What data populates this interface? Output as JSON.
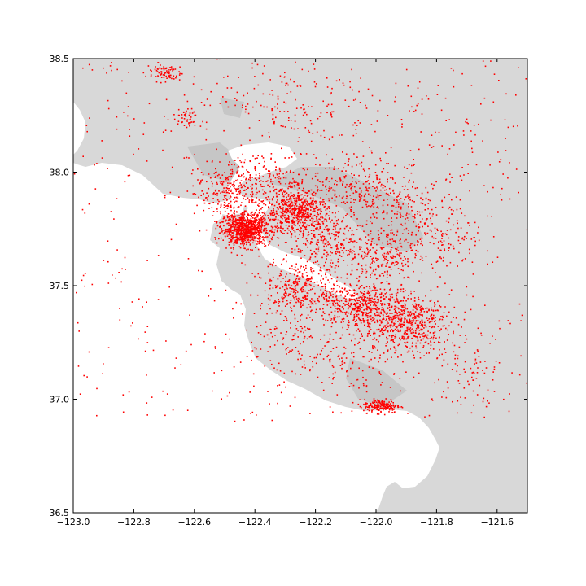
{
  "colors": {
    "land": "#d8d8d8",
    "inland_shade": "#c6c6c6",
    "water": "#ffffff",
    "points": "#ff0000",
    "axes": "#000000"
  },
  "chart_data": {
    "type": "scatter",
    "title": "",
    "xlabel": "",
    "ylabel": "",
    "xlim": [
      -123.0,
      -121.5
    ],
    "ylim": [
      36.5,
      38.5
    ],
    "grid": false,
    "legend": "none",
    "x_ticks": [
      -123.0,
      -122.8,
      -122.6,
      -122.4,
      -122.2,
      -122.0,
      -121.8,
      -121.6
    ],
    "x_tick_labels": [
      "−123.0",
      "−122.8",
      "−122.6",
      "−122.4",
      "−122.2",
      "−122.0",
      "−121.8",
      "−121.6"
    ],
    "y_ticks": [
      36.5,
      37.0,
      37.5,
      38.0,
      38.5
    ],
    "y_tick_labels": [
      "36.5",
      "37.0",
      "37.5",
      "38.0",
      "38.5"
    ],
    "clusters": [
      {
        "lon": -122.43,
        "lat": 37.75,
        "spread": [
          0.04,
          0.035
        ],
        "weight": 900
      },
      {
        "lon": -122.26,
        "lat": 37.83,
        "spread": [
          0.05,
          0.05
        ],
        "weight": 600
      },
      {
        "lon": -122.16,
        "lat": 37.72,
        "spread": [
          0.06,
          0.06
        ],
        "weight": 250
      },
      {
        "lon": -122.05,
        "lat": 37.42,
        "spread": [
          0.07,
          0.05
        ],
        "weight": 500
      },
      {
        "lon": -121.9,
        "lat": 37.33,
        "spread": [
          0.07,
          0.06
        ],
        "weight": 550
      },
      {
        "lon": -122.25,
        "lat": 37.5,
        "spread": [
          0.06,
          0.06
        ],
        "weight": 300
      },
      {
        "lon": -122.0,
        "lat": 37.62,
        "spread": [
          0.07,
          0.06
        ],
        "weight": 250
      },
      {
        "lon": -121.98,
        "lat": 36.97,
        "spread": [
          0.03,
          0.015
        ],
        "weight": 180
      },
      {
        "lon": -122.4,
        "lat": 37.97,
        "spread": [
          0.09,
          0.06
        ],
        "weight": 250
      },
      {
        "lon": -122.5,
        "lat": 37.9,
        "spread": [
          0.05,
          0.05
        ],
        "weight": 150
      },
      {
        "lon": -122.7,
        "lat": 38.44,
        "spread": [
          0.03,
          0.02
        ],
        "weight": 80
      },
      {
        "lon": -122.63,
        "lat": 38.24,
        "spread": [
          0.02,
          0.02
        ],
        "weight": 40
      },
      {
        "lon": -122.06,
        "lat": 37.95,
        "spread": [
          0.07,
          0.06
        ],
        "weight": 200
      },
      {
        "lon": -121.93,
        "lat": 37.85,
        "spread": [
          0.07,
          0.06
        ],
        "weight": 150
      },
      {
        "lon": -121.8,
        "lat": 37.7,
        "spread": [
          0.08,
          0.07
        ],
        "weight": 150
      },
      {
        "lon": -122.1,
        "lat": 37.15,
        "spread": [
          0.1,
          0.08
        ],
        "weight": 120
      },
      {
        "lon": -121.7,
        "lat": 37.15,
        "spread": [
          0.08,
          0.1
        ],
        "weight": 100
      },
      {
        "lon": -122.3,
        "lat": 37.3,
        "spread": [
          0.07,
          0.08
        ],
        "weight": 120
      },
      {
        "lon": -122.2,
        "lat": 38.25,
        "spread": [
          0.15,
          0.1
        ],
        "weight": 100
      },
      {
        "lon": -121.75,
        "lat": 38.05,
        "spread": [
          0.15,
          0.15
        ],
        "weight": 80
      },
      {
        "lon": -122.4,
        "lat": 38.3,
        "spread": [
          0.15,
          0.12
        ],
        "weight": 80
      }
    ],
    "background_points": 450,
    "marker": {
      "shape": "dot",
      "color": "#ff0000"
    }
  }
}
